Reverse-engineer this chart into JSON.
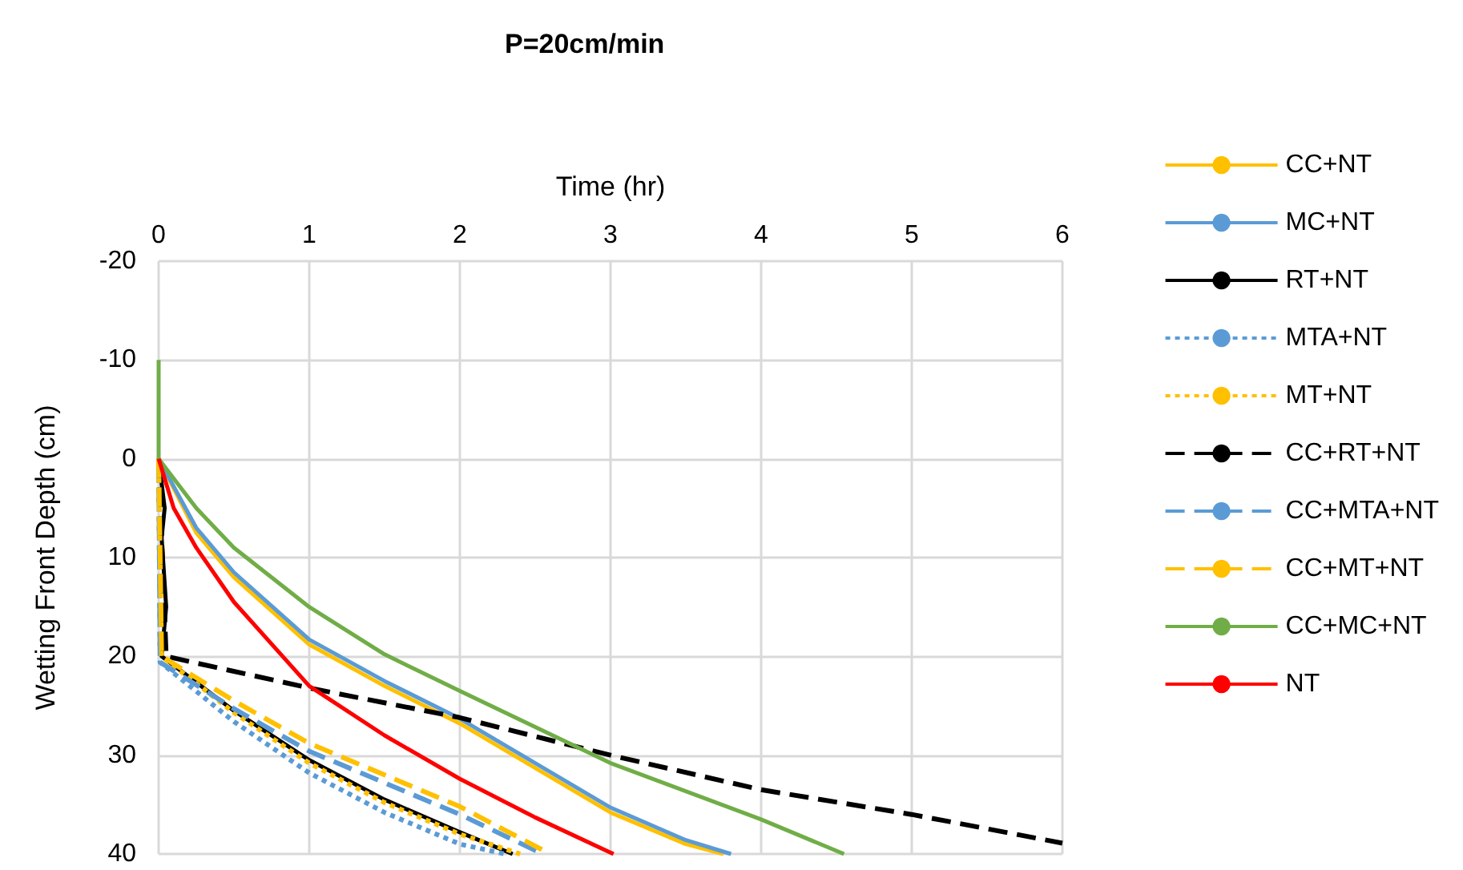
{
  "chart_data": {
    "type": "line",
    "title": "P=20cm/min",
    "xlabel": "Time (hr)",
    "ylabel": "Wetting Front Depth (cm)",
    "xlim": [
      0,
      6
    ],
    "xticks": [
      0,
      1,
      2,
      3,
      4,
      5,
      6
    ],
    "ylim": [
      40,
      -20
    ],
    "yticks": [
      -20,
      -10,
      0,
      10,
      20,
      30,
      40
    ],
    "grid": true,
    "legend": "right",
    "marker": "none",
    "series": [
      {
        "name": "CC+NT",
        "color": "#ffc000",
        "line_style": "solid",
        "x": [
          0,
          0.25,
          0.5,
          1,
          1.5,
          2,
          2.5,
          3,
          3.5,
          3.75
        ],
        "values": [
          0,
          7.5,
          12,
          18.8,
          23,
          26.8,
          31.3,
          35.8,
          39,
          40
        ]
      },
      {
        "name": "MC+NT",
        "color": "#5b9bd5",
        "line_style": "solid",
        "x": [
          0,
          0.25,
          0.5,
          1,
          1.5,
          2,
          2.5,
          3,
          3.5,
          3.8
        ],
        "values": [
          0,
          7,
          11.5,
          18.3,
          22.5,
          26.3,
          30.8,
          35.3,
          38.6,
          40
        ]
      },
      {
        "name": "RT+NT",
        "color": "#000000",
        "line_style": "solid",
        "x": [
          0,
          0.04,
          0.02,
          0.05,
          0.02,
          0.5,
          1,
          1.5,
          2,
          2.35
        ],
        "values": [
          0,
          5,
          8,
          15,
          20,
          25.5,
          30.5,
          34.5,
          37.8,
          40
        ]
      },
      {
        "name": "MTA+NT",
        "color": "#5b9bd5",
        "line_style": "dotted",
        "x": [
          0,
          0.01,
          0.5,
          1,
          1.5,
          2,
          2.3
        ],
        "values": [
          0,
          20.6,
          26.6,
          31.8,
          35.8,
          39,
          40
        ]
      },
      {
        "name": "MT+NT",
        "color": "#ffc000",
        "line_style": "dotted",
        "x": [
          0,
          0.02,
          0.5,
          1,
          1.5,
          2,
          2.4
        ],
        "values": [
          0,
          20,
          25.7,
          30.8,
          34.8,
          38,
          40
        ]
      },
      {
        "name": "CC+RT+NT",
        "color": "#000000",
        "line_style": "dashed",
        "x": [
          0,
          0.05,
          1,
          2,
          3,
          4,
          5,
          6
        ],
        "values": [
          0,
          20,
          23.2,
          26.2,
          30,
          33.5,
          36,
          38.9
        ]
      },
      {
        "name": "CC+MTA+NT",
        "color": "#5b9bd5",
        "line_style": "dashed",
        "x": [
          0,
          0.01,
          0.5,
          1,
          1.5,
          2,
          2.55
        ],
        "values": [
          0,
          20.6,
          25.3,
          29.6,
          32.8,
          36,
          40
        ]
      },
      {
        "name": "CC+MT+NT",
        "color": "#ffc000",
        "line_style": "dashed",
        "x": [
          0,
          0.02,
          0.5,
          1,
          1.5,
          2,
          2.6
        ],
        "values": [
          0,
          20,
          24.5,
          28.8,
          32,
          35.2,
          40
        ]
      },
      {
        "name": "CC+MC+NT",
        "color": "#70ad47",
        "line_style": "solid",
        "x": [
          0,
          0,
          0.25,
          0.5,
          1,
          1.5,
          2,
          3,
          4,
          4.55
        ],
        "values": [
          -10,
          0,
          5,
          9,
          15,
          19.8,
          23.5,
          30.8,
          36.5,
          40
        ]
      },
      {
        "name": "NT",
        "color": "#ff0000",
        "line_style": "solid",
        "x": [
          0,
          0.1,
          0.25,
          0.5,
          1,
          1.5,
          2,
          2.5,
          3.02
        ],
        "values": [
          0,
          5,
          9,
          14.5,
          23,
          28,
          32.4,
          36.3,
          40
        ]
      }
    ]
  }
}
